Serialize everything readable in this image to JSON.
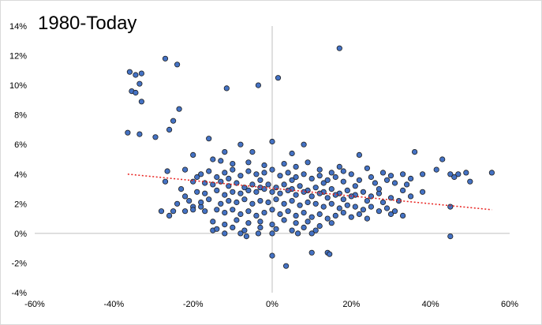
{
  "chart_data": {
    "type": "scatter",
    "title": "1980-Today",
    "xlabel": "",
    "ylabel": "",
    "xlim": [
      -0.6,
      0.6
    ],
    "ylim": [
      -0.04,
      0.14
    ],
    "x_ticks": [
      -0.6,
      -0.4,
      -0.2,
      0.0,
      0.2,
      0.4,
      0.6
    ],
    "x_tick_labels": [
      "-60%",
      "-40%",
      "-20%",
      "0%",
      "20%",
      "40%",
      "60%"
    ],
    "y_ticks": [
      -0.04,
      -0.02,
      0.0,
      0.02,
      0.04,
      0.06,
      0.08,
      0.1,
      0.12,
      0.14
    ],
    "y_tick_labels": [
      "-4%",
      "-2%",
      "0%",
      "2%",
      "4%",
      "6%",
      "8%",
      "10%",
      "12%",
      "14%"
    ],
    "grid": false,
    "legend": "none",
    "marker_color": "#4472c4",
    "marker_edge_color": "#1f1f1f",
    "trendline": {
      "style": "dotted",
      "color": "#e8211e",
      "x": [
        -0.365,
        0.555
      ],
      "y": [
        0.04,
        0.016
      ]
    },
    "points": [
      [
        -0.36,
        0.109
      ],
      [
        -0.345,
        0.107
      ],
      [
        -0.33,
        0.108
      ],
      [
        -0.335,
        0.101
      ],
      [
        -0.355,
        0.096
      ],
      [
        -0.345,
        0.095
      ],
      [
        -0.33,
        0.089
      ],
      [
        -0.27,
        0.118
      ],
      [
        -0.24,
        0.114
      ],
      [
        -0.235,
        0.084
      ],
      [
        -0.25,
        0.076
      ],
      [
        -0.26,
        0.07
      ],
      [
        -0.365,
        0.068
      ],
      [
        -0.335,
        0.067
      ],
      [
        -0.295,
        0.065
      ],
      [
        0.17,
        0.125
      ],
      [
        0.015,
        0.105
      ],
      [
        -0.035,
        0.1
      ],
      [
        -0.115,
        0.098
      ],
      [
        0.36,
        0.055
      ],
      [
        0.43,
        0.05
      ],
      [
        0.415,
        0.043
      ],
      [
        0.47,
        0.04
      ],
      [
        0.45,
        0.04
      ],
      [
        0.5,
        0.035
      ],
      [
        0.555,
        0.041
      ],
      [
        0.49,
        0.041
      ],
      [
        0.46,
        0.038
      ],
      [
        0.38,
        0.04
      ],
      [
        0.35,
        0.037
      ],
      [
        0.45,
        0.018
      ],
      [
        0.45,
        -0.002
      ],
      [
        0.33,
        0.012
      ],
      [
        0.3,
        0.013
      ],
      [
        0.27,
        0.015
      ],
      [
        0.32,
        0.022
      ],
      [
        0.1,
        -0.013
      ],
      [
        0.14,
        -0.013
      ],
      [
        0.145,
        -0.014
      ],
      [
        0.035,
        -0.022
      ],
      [
        0.0,
        -0.015
      ],
      [
        0.065,
        0.0
      ],
      [
        0.1,
        0.0
      ],
      [
        0.0,
        0.0
      ],
      [
        -0.035,
        0.0
      ],
      [
        -0.065,
        -0.002
      ],
      [
        -0.08,
        0.0
      ],
      [
        -0.12,
        0.0
      ],
      [
        -0.15,
        0.002
      ],
      [
        -0.265,
        0.042
      ],
      [
        -0.27,
        0.035
      ],
      [
        -0.28,
        0.015
      ],
      [
        -0.25,
        0.015
      ],
      [
        -0.26,
        0.012
      ],
      [
        -0.22,
        0.015
      ],
      [
        -0.2,
        0.018
      ],
      [
        -0.18,
        0.018
      ],
      [
        -0.2,
        0.053
      ],
      [
        -0.16,
        0.064
      ],
      [
        -0.12,
        0.055
      ],
      [
        -0.08,
        0.06
      ],
      [
        -0.05,
        0.055
      ],
      [
        0.0,
        0.062
      ],
      [
        0.08,
        0.06
      ],
      [
        0.05,
        0.054
      ],
      [
        0.17,
        0.045
      ],
      [
        0.22,
        0.053
      ],
      [
        0.24,
        0.044
      ],
      [
        -0.15,
        0.05
      ],
      [
        -0.13,
        0.049
      ],
      [
        -0.1,
        0.047
      ],
      [
        -0.06,
        0.048
      ],
      [
        -0.02,
        0.046
      ],
      [
        0.03,
        0.047
      ],
      [
        0.06,
        0.045
      ],
      [
        0.09,
        0.048
      ],
      [
        0.12,
        0.043
      ],
      [
        0.15,
        0.041
      ],
      [
        0.18,
        0.042
      ],
      [
        0.2,
        0.04
      ],
      [
        0.25,
        0.038
      ],
      [
        0.28,
        0.041
      ],
      [
        0.3,
        0.039
      ],
      [
        0.33,
        0.04
      ],
      [
        -0.18,
        0.04
      ],
      [
        -0.16,
        0.042
      ],
      [
        -0.14,
        0.038
      ],
      [
        -0.12,
        0.041
      ],
      [
        -0.1,
        0.043
      ],
      [
        -0.08,
        0.039
      ],
      [
        -0.06,
        0.042
      ],
      [
        -0.04,
        0.04
      ],
      [
        -0.02,
        0.041
      ],
      [
        0.0,
        0.043
      ],
      [
        0.02,
        0.039
      ],
      [
        0.04,
        0.041
      ],
      [
        0.06,
        0.038
      ],
      [
        0.08,
        0.04
      ],
      [
        0.1,
        0.037
      ],
      [
        0.12,
        0.039
      ],
      [
        0.14,
        0.036
      ],
      [
        0.16,
        0.038
      ],
      [
        0.18,
        0.035
      ],
      [
        0.22,
        0.036
      ],
      [
        0.26,
        0.034
      ],
      [
        0.29,
        0.036
      ],
      [
        0.31,
        0.034
      ],
      [
        0.34,
        0.033
      ],
      [
        -0.2,
        0.035
      ],
      [
        -0.17,
        0.034
      ],
      [
        -0.15,
        0.033
      ],
      [
        -0.13,
        0.035
      ],
      [
        -0.11,
        0.032
      ],
      [
        -0.09,
        0.034
      ],
      [
        -0.07,
        0.031
      ],
      [
        -0.05,
        0.033
      ],
      [
        -0.03,
        0.031
      ],
      [
        -0.01,
        0.033
      ],
      [
        0.01,
        0.031
      ],
      [
        0.03,
        0.033
      ],
      [
        0.05,
        0.03
      ],
      [
        0.07,
        0.032
      ],
      [
        0.09,
        0.029
      ],
      [
        0.11,
        0.031
      ],
      [
        0.13,
        0.028
      ],
      [
        0.15,
        0.03
      ],
      [
        0.17,
        0.027
      ],
      [
        0.19,
        0.029
      ],
      [
        0.21,
        0.026
      ],
      [
        0.23,
        0.028
      ],
      [
        0.25,
        0.025
      ],
      [
        0.27,
        0.027
      ],
      [
        -0.19,
        0.028
      ],
      [
        -0.17,
        0.027
      ],
      [
        -0.14,
        0.029
      ],
      [
        -0.12,
        0.026
      ],
      [
        -0.1,
        0.028
      ],
      [
        -0.08,
        0.027
      ],
      [
        -0.06,
        0.029
      ],
      [
        -0.04,
        0.028
      ],
      [
        -0.02,
        0.03
      ],
      [
        0.0,
        0.028
      ],
      [
        0.02,
        0.027
      ],
      [
        0.04,
        0.029
      ],
      [
        0.06,
        0.026
      ],
      [
        0.08,
        0.028
      ],
      [
        0.1,
        0.025
      ],
      [
        0.12,
        0.027
      ],
      [
        0.14,
        0.024
      ],
      [
        0.16,
        0.026
      ],
      [
        0.18,
        0.023
      ],
      [
        0.2,
        0.025
      ],
      [
        0.24,
        0.022
      ],
      [
        0.28,
        0.021
      ],
      [
        0.3,
        0.024
      ],
      [
        -0.21,
        0.022
      ],
      [
        -0.18,
        0.021
      ],
      [
        -0.16,
        0.023
      ],
      [
        -0.13,
        0.02
      ],
      [
        -0.11,
        0.022
      ],
      [
        -0.09,
        0.021
      ],
      [
        -0.07,
        0.023
      ],
      [
        -0.05,
        0.02
      ],
      [
        -0.03,
        0.022
      ],
      [
        -0.01,
        0.021
      ],
      [
        0.01,
        0.023
      ],
      [
        0.03,
        0.02
      ],
      [
        0.05,
        0.022
      ],
      [
        0.07,
        0.019
      ],
      [
        0.09,
        0.021
      ],
      [
        0.11,
        0.02
      ],
      [
        0.13,
        0.018
      ],
      [
        0.15,
        0.02
      ],
      [
        0.17,
        0.017
      ],
      [
        0.19,
        0.019
      ],
      [
        0.21,
        0.018
      ],
      [
        0.23,
        0.016
      ],
      [
        0.25,
        0.018
      ],
      [
        0.29,
        0.017
      ],
      [
        0.31,
        0.015
      ],
      [
        -0.2,
        0.016
      ],
      [
        -0.17,
        0.015
      ],
      [
        -0.14,
        0.016
      ],
      [
        -0.12,
        0.014
      ],
      [
        -0.1,
        0.016
      ],
      [
        -0.08,
        0.013
      ],
      [
        -0.06,
        0.015
      ],
      [
        -0.04,
        0.012
      ],
      [
        -0.02,
        0.014
      ],
      [
        0.0,
        0.016
      ],
      [
        0.02,
        0.013
      ],
      [
        0.04,
        0.015
      ],
      [
        0.06,
        0.012
      ],
      [
        0.08,
        0.014
      ],
      [
        0.1,
        0.011
      ],
      [
        0.12,
        0.013
      ],
      [
        0.14,
        0.01
      ],
      [
        0.16,
        0.012
      ],
      [
        0.18,
        0.014
      ],
      [
        0.2,
        0.011
      ],
      [
        0.22,
        0.013
      ],
      [
        0.24,
        0.01
      ],
      [
        -0.15,
        0.008
      ],
      [
        -0.12,
        0.006
      ],
      [
        -0.09,
        0.009
      ],
      [
        -0.06,
        0.007
      ],
      [
        -0.03,
        0.008
      ],
      [
        0.0,
        0.006
      ],
      [
        0.03,
        0.009
      ],
      [
        0.06,
        0.007
      ],
      [
        0.09,
        0.008
      ],
      [
        0.12,
        0.005
      ],
      [
        0.15,
        0.007
      ],
      [
        -0.14,
        0.003
      ],
      [
        -0.1,
        0.004
      ],
      [
        -0.07,
        0.002
      ],
      [
        -0.03,
        0.004
      ],
      [
        0.01,
        0.003
      ],
      [
        0.05,
        0.002
      ],
      [
        0.08,
        0.004
      ],
      [
        0.11,
        0.002
      ],
      [
        -0.23,
        0.03
      ],
      [
        -0.22,
        0.025
      ],
      [
        -0.24,
        0.02
      ],
      [
        -0.22,
        0.043
      ],
      [
        -0.19,
        0.038
      ],
      [
        -0.11,
        0.037
      ],
      [
        -0.03,
        0.036
      ],
      [
        0.05,
        0.036
      ],
      [
        0.13,
        0.034
      ],
      [
        0.21,
        0.032
      ],
      [
        0.27,
        0.03
      ],
      [
        0.33,
        0.029
      ],
      [
        0.35,
        0.025
      ],
      [
        0.38,
        0.028
      ]
    ]
  }
}
